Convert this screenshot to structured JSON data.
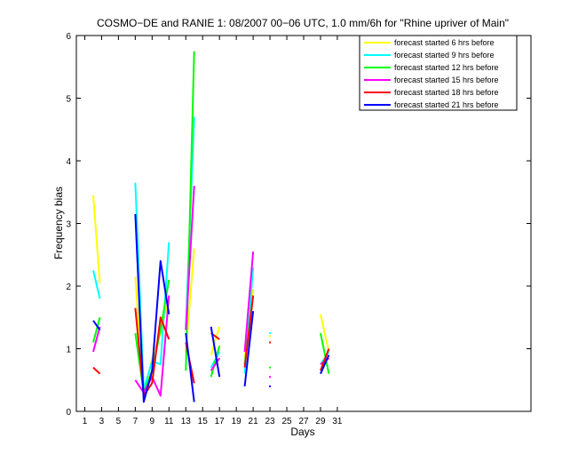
{
  "chart_data": {
    "type": "line",
    "title": "COSMO−DE and RANIE 1: 08/2007 00−06 UTC, 1.0 mm/6h for \"Rhine upriver of Main\"",
    "xlabel": "Days",
    "ylabel": "Frequency bias",
    "xlim": [
      0,
      54
    ],
    "ylim": [
      0,
      6
    ],
    "x_ticks": [
      1,
      3,
      5,
      7,
      9,
      11,
      13,
      15,
      17,
      19,
      21,
      23,
      25,
      27,
      29,
      31
    ],
    "y_ticks": [
      0,
      1,
      2,
      3,
      4,
      5,
      6
    ],
    "legend_position": "top-right",
    "series": [
      {
        "name": "forecast started 6 hrs before",
        "color": "#ffff00",
        "points": [
          [
            2,
            3.45
          ],
          [
            2.8,
            2.05
          ],
          [
            null,
            null
          ],
          [
            7,
            2.15
          ],
          [
            8,
            0.2
          ],
          [
            9,
            0.85
          ],
          [
            10,
            1.25
          ],
          [
            11,
            1.8
          ],
          [
            null,
            null
          ],
          [
            13,
            0.95
          ],
          [
            14,
            2.6
          ],
          [
            null,
            null
          ],
          [
            16,
            0.9
          ],
          [
            17,
            1.35
          ],
          [
            null,
            null
          ],
          [
            20,
            0.85
          ],
          [
            21,
            1.95
          ],
          [
            null,
            null
          ],
          [
            23,
            1.2
          ],
          [
            null,
            null
          ],
          [
            29,
            1.55
          ],
          [
            30,
            0.95
          ]
        ]
      },
      {
        "name": "forecast started 9 hrs before",
        "color": "#00ffff",
        "points": [
          [
            2,
            2.25
          ],
          [
            2.8,
            1.8
          ],
          [
            null,
            null
          ],
          [
            7,
            3.65
          ],
          [
            8,
            0.35
          ],
          [
            9,
            0.8
          ],
          [
            10,
            0.75
          ],
          [
            11,
            2.7
          ],
          [
            null,
            null
          ],
          [
            13,
            1.35
          ],
          [
            14,
            4.7
          ],
          [
            null,
            null
          ],
          [
            16,
            0.7
          ],
          [
            17,
            0.95
          ],
          [
            null,
            null
          ],
          [
            20,
            0.6
          ],
          [
            21,
            2.3
          ],
          [
            null,
            null
          ],
          [
            23,
            1.25
          ],
          [
            null,
            null
          ],
          [
            29,
            0.75
          ],
          [
            30,
            0.95
          ]
        ]
      },
      {
        "name": "forecast started 12 hrs before",
        "color": "#00ff00",
        "points": [
          [
            2,
            1.1
          ],
          [
            2.8,
            1.5
          ],
          [
            null,
            null
          ],
          [
            7,
            1.25
          ],
          [
            8,
            0.3
          ],
          [
            9,
            0.65
          ],
          [
            10,
            1.3
          ],
          [
            11,
            2.1
          ],
          [
            null,
            null
          ],
          [
            13,
            0.65
          ],
          [
            14,
            5.75
          ],
          [
            null,
            null
          ],
          [
            16,
            0.55
          ],
          [
            17,
            1.05
          ],
          [
            null,
            null
          ],
          [
            20,
            0.75
          ],
          [
            21,
            1.85
          ],
          [
            null,
            null
          ],
          [
            23,
            0.7
          ],
          [
            null,
            null
          ],
          [
            29,
            1.25
          ],
          [
            30,
            0.6
          ]
        ]
      },
      {
        "name": "forecast started 15 hrs before",
        "color": "#ff00ff",
        "points": [
          [
            2,
            0.95
          ],
          [
            2.8,
            1.35
          ],
          [
            null,
            null
          ],
          [
            7,
            0.5
          ],
          [
            8,
            0.3
          ],
          [
            9,
            0.55
          ],
          [
            10,
            0.25
          ],
          [
            11,
            1.85
          ],
          [
            null,
            null
          ],
          [
            13,
            1.3
          ],
          [
            14,
            3.6
          ],
          [
            null,
            null
          ],
          [
            16,
            0.65
          ],
          [
            17,
            0.85
          ],
          [
            null,
            null
          ],
          [
            20,
            0.95
          ],
          [
            21,
            2.55
          ],
          [
            null,
            null
          ],
          [
            23,
            0.55
          ],
          [
            null,
            null
          ],
          [
            29,
            0.75
          ],
          [
            30,
            0.85
          ]
        ]
      },
      {
        "name": "forecast started 18 hrs before",
        "color": "#ff0000",
        "points": [
          [
            2,
            0.7
          ],
          [
            2.8,
            0.6
          ],
          [
            null,
            null
          ],
          [
            7,
            1.65
          ],
          [
            8,
            0.25
          ],
          [
            9,
            0.45
          ],
          [
            10,
            1.5
          ],
          [
            11,
            1.15
          ],
          [
            null,
            null
          ],
          [
            13,
            1.1
          ],
          [
            14,
            0.45
          ],
          [
            null,
            null
          ],
          [
            16,
            1.25
          ],
          [
            17,
            1.15
          ],
          [
            null,
            null
          ],
          [
            20,
            0.7
          ],
          [
            21,
            1.85
          ],
          [
            null,
            null
          ],
          [
            23,
            1.1
          ],
          [
            null,
            null
          ],
          [
            29,
            0.65
          ],
          [
            30,
            1.0
          ]
        ]
      },
      {
        "name": "forecast started 21 hrs before",
        "color": "#0000ff",
        "points": [
          [
            2,
            1.45
          ],
          [
            2.8,
            1.3
          ],
          [
            null,
            null
          ],
          [
            7,
            3.15
          ],
          [
            8,
            0.15
          ],
          [
            9,
            0.65
          ],
          [
            10,
            2.4
          ],
          [
            11,
            1.55
          ],
          [
            null,
            null
          ],
          [
            13,
            1.25
          ],
          [
            14,
            0.15
          ],
          [
            null,
            null
          ],
          [
            16,
            1.35
          ],
          [
            17,
            0.55
          ],
          [
            null,
            null
          ],
          [
            20,
            0.4
          ],
          [
            21,
            1.6
          ],
          [
            null,
            null
          ],
          [
            23,
            0.4
          ],
          [
            null,
            null
          ],
          [
            29,
            0.6
          ],
          [
            30,
            0.9
          ]
        ]
      }
    ]
  }
}
